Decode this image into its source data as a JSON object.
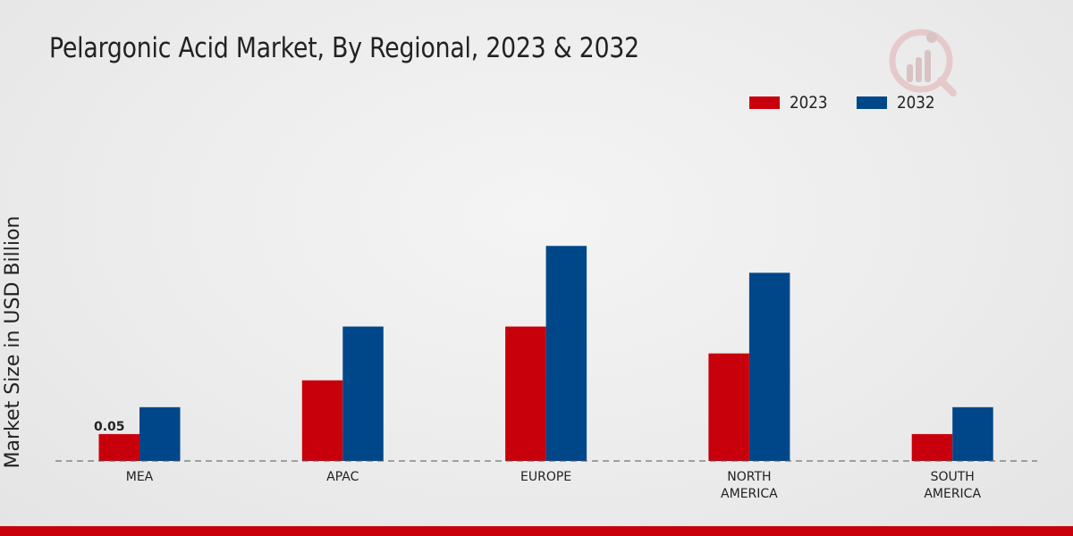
{
  "chart_data": {
    "type": "bar",
    "title": "Pelargonic Acid Market, By Regional, 2023 & 2032",
    "xlabel": "",
    "ylabel": "Market Size in USD Billion",
    "categories": [
      "MEA",
      "APAC",
      "EUROPE",
      "NORTH AMERICA",
      "SOUTH AMERICA"
    ],
    "category_lines": [
      [
        "MEA"
      ],
      [
        "APAC"
      ],
      [
        "EUROPE"
      ],
      [
        "NORTH",
        "AMERICA"
      ],
      [
        "SOUTH",
        "AMERICA"
      ]
    ],
    "series": [
      {
        "name": "2023",
        "color": "#c8000b",
        "values": [
          0.05,
          0.15,
          0.25,
          0.2,
          0.05
        ]
      },
      {
        "name": "2032",
        "color": "#00478a",
        "values": [
          0.1,
          0.25,
          0.4,
          0.35,
          0.1
        ]
      }
    ],
    "data_labels": [
      {
        "series": 0,
        "index": 0,
        "text": "0.05"
      }
    ],
    "ylim": [
      0,
      0.55
    ],
    "grid": false,
    "legend": "top-right"
  }
}
